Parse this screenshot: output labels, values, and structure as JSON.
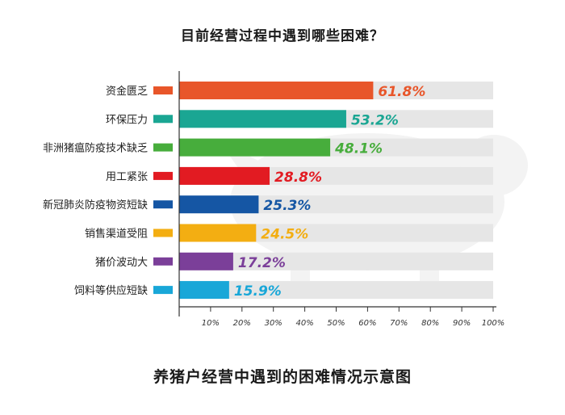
{
  "chart_data": {
    "type": "bar",
    "orientation": "horizontal",
    "title": "目前经营过程中遇到哪些困难？",
    "caption": "养猪户经营中遇到的困难情况示意图",
    "categories": [
      "资金匮乏",
      "环保压力",
      "非洲猪瘟防疫技术缺乏",
      "用工紧张",
      "新冠肺炎防疫物资短缺",
      "销售渠道受阻",
      "猪价波动大",
      "饲料等供应短缺"
    ],
    "values": [
      61.8,
      53.2,
      48.1,
      28.8,
      25.3,
      24.5,
      17.2,
      15.9
    ],
    "value_labels": [
      "61.8%",
      "53.2%",
      "48.1%",
      "28.8%",
      "25.3%",
      "24.5%",
      "17.2%",
      "15.9%"
    ],
    "colors": [
      "#e8562a",
      "#1aa693",
      "#47ad3c",
      "#e21b22",
      "#1556a4",
      "#f3ae12",
      "#7b3f99",
      "#19a7d8"
    ],
    "track_color": "#e6e6e6",
    "xlim": [
      0,
      100
    ],
    "x_ticks": [
      10,
      20,
      30,
      40,
      50,
      60,
      70,
      80,
      90,
      100
    ],
    "x_tick_labels": [
      "10%",
      "20%",
      "30%",
      "40%",
      "50%",
      "60%",
      "70%",
      "80%",
      "90%",
      "100%"
    ],
    "grid": false,
    "legend": "none"
  }
}
